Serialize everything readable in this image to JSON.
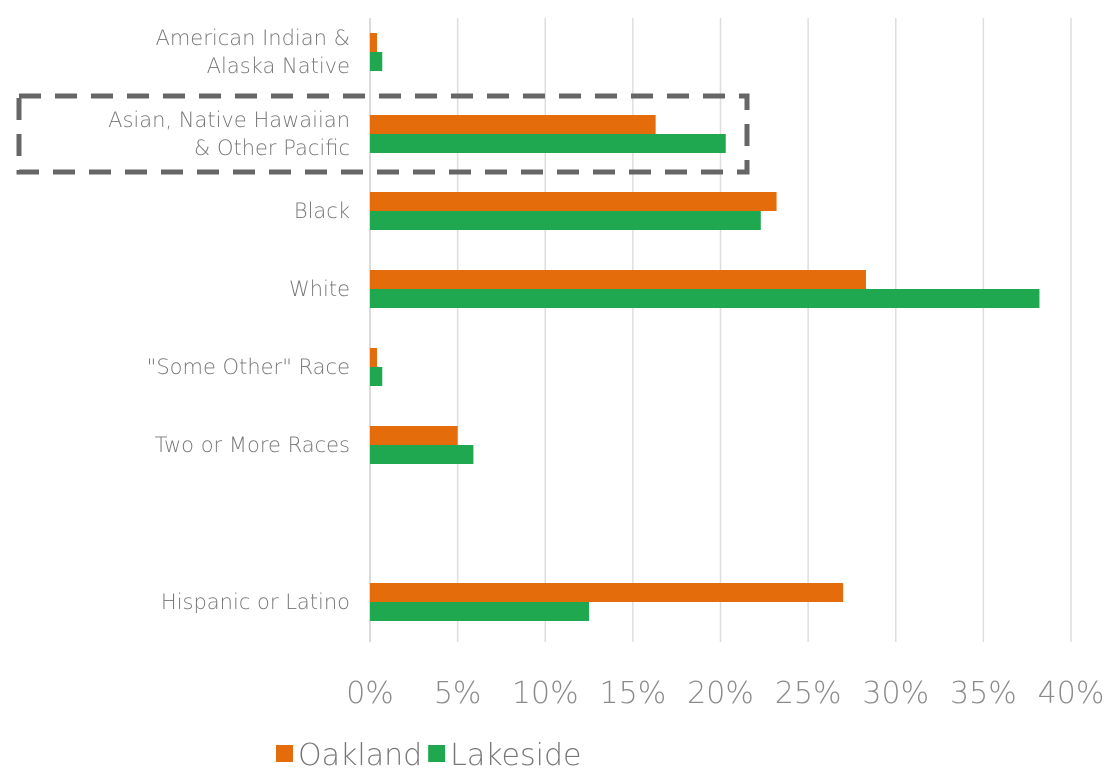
{
  "chart_data": {
    "type": "bar",
    "orientation": "horizontal",
    "categories": [
      [
        "American Indian &",
        "Alaska Native"
      ],
      [
        "Asian, Native Hawaiian",
        "& Other Pacific"
      ],
      [
        "Black"
      ],
      [
        "White"
      ],
      [
        "\"Some Other\" Race"
      ],
      [
        "Two or More Races"
      ],
      [
        "Hispanic or Latino"
      ]
    ],
    "series": [
      {
        "name": "Oakland",
        "color": "#e46c0a",
        "values": [
          0.4,
          16.3,
          23.2,
          28.3,
          0.4,
          5.0,
          27.0
        ]
      },
      {
        "name": "Lakeside",
        "color": "#1fa84f",
        "values": [
          0.7,
          20.3,
          22.3,
          38.2,
          0.7,
          5.9,
          12.5
        ]
      }
    ],
    "xlim": [
      0,
      40
    ],
    "x_ticks": [
      "0%",
      "5%",
      "10%",
      "15%",
      "20%",
      "25%",
      "30%",
      "35%",
      "40%"
    ],
    "grid": "vertical",
    "legend": "bottom",
    "highlight": {
      "category_index": 1,
      "style": "dashed-box",
      "color": "#666666"
    }
  }
}
